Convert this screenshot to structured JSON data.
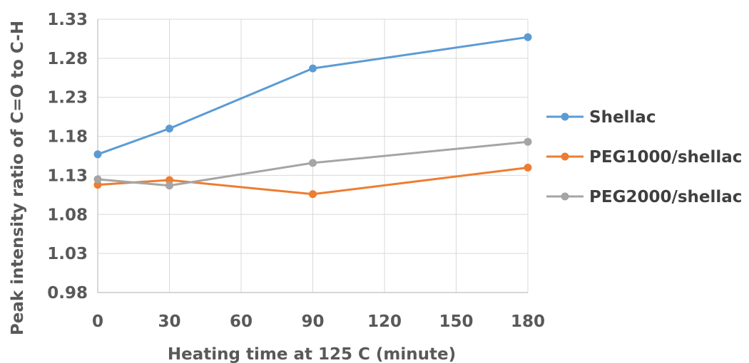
{
  "chart_data": {
    "type": "line",
    "title": "",
    "xlabel": "Heating time at 125 C (minute)",
    "ylabel": "Peak intensity ratio of C=O to C-H",
    "xlim": [
      0,
      180
    ],
    "ylim": [
      0.98,
      1.33
    ],
    "xticks": [
      0,
      30,
      60,
      90,
      120,
      150,
      180
    ],
    "xtick_labels": [
      "0",
      "30",
      "60",
      "90",
      "120",
      "150",
      "180"
    ],
    "yticks": [
      0.98,
      1.03,
      1.08,
      1.13,
      1.18,
      1.23,
      1.28,
      1.33
    ],
    "ytick_labels": [
      "0.98",
      "1.03",
      "1.08",
      "1.13",
      "1.18",
      "1.23",
      "1.28",
      "1.33"
    ],
    "grid": true,
    "legend_position": "right",
    "x": [
      0,
      30,
      90,
      180
    ],
    "series": [
      {
        "name": "Shellac",
        "color": "#5b9bd5",
        "values": [
          1.157,
          1.19,
          1.267,
          1.307
        ]
      },
      {
        "name": "PEG1000/shellac",
        "color": "#ed7d31",
        "values": [
          1.118,
          1.124,
          1.106,
          1.14
        ]
      },
      {
        "name": "PEG2000/shellac",
        "color": "#a5a5a5",
        "values": [
          1.125,
          1.117,
          1.146,
          1.173
        ]
      }
    ]
  }
}
